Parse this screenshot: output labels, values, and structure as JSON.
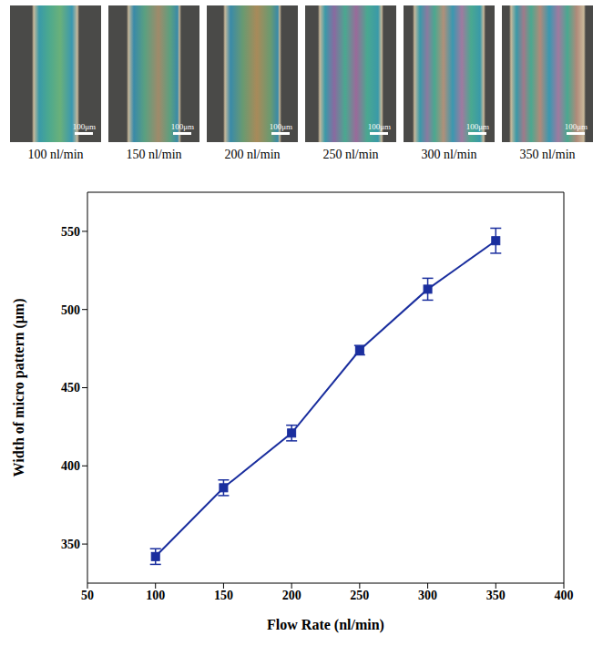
{
  "micrographs": [
    {
      "label": "100 nl/min",
      "scale_bar": "100μm"
    },
    {
      "label": "150 nl/min",
      "scale_bar": "100μm"
    },
    {
      "label": "200 nl/min",
      "scale_bar": "100μm"
    },
    {
      "label": "250 nl/min",
      "scale_bar": "100μm"
    },
    {
      "label": "300 nl/min",
      "scale_bar": "100μm"
    },
    {
      "label": "350 nl/min",
      "scale_bar": "100μm"
    }
  ],
  "chart_data": {
    "type": "line",
    "x_label": "Flow Rate (nl/min)",
    "y_label": "Width of micro pattern (μm)",
    "x": [
      100,
      150,
      200,
      250,
      300,
      350
    ],
    "values": [
      342,
      386,
      421,
      474,
      513,
      544
    ],
    "errors": [
      5,
      5,
      5,
      3,
      7,
      8
    ],
    "color": "#1a2e9e",
    "marker": "square",
    "xlim": [
      50,
      400
    ],
    "xticks": [
      50,
      100,
      150,
      200,
      250,
      300,
      350,
      400
    ],
    "ylim": [
      325,
      575
    ],
    "yticks": [
      350,
      400,
      450,
      500,
      550
    ],
    "grid": false
  }
}
